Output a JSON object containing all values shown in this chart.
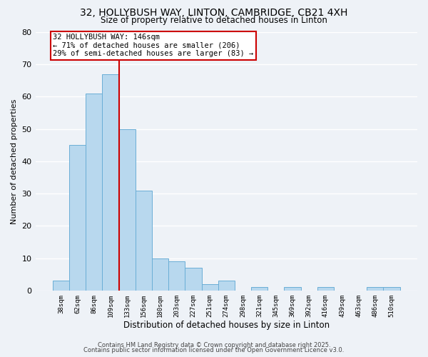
{
  "title_line1": "32, HOLLYBUSH WAY, LINTON, CAMBRIDGE, CB21 4XH",
  "title_line2": "Size of property relative to detached houses in Linton",
  "xlabel": "Distribution of detached houses by size in Linton",
  "ylabel": "Number of detached properties",
  "bin_labels": [
    "38sqm",
    "62sqm",
    "86sqm",
    "109sqm",
    "133sqm",
    "156sqm",
    "180sqm",
    "203sqm",
    "227sqm",
    "251sqm",
    "274sqm",
    "298sqm",
    "321sqm",
    "345sqm",
    "369sqm",
    "392sqm",
    "416sqm",
    "439sqm",
    "463sqm",
    "486sqm",
    "510sqm"
  ],
  "bar_heights": [
    3,
    45,
    61,
    67,
    50,
    31,
    10,
    9,
    7,
    2,
    3,
    0,
    1,
    0,
    1,
    0,
    1,
    0,
    0,
    1,
    1
  ],
  "bar_color": "#b8d8ee",
  "bar_edge_color": "#6aaed6",
  "vline_x": 3.5,
  "vline_color": "#cc0000",
  "annotation_line1": "32 HOLLYBUSH WAY: 146sqm",
  "annotation_line2": "← 71% of detached houses are smaller (206)",
  "annotation_line3": "29% of semi-detached houses are larger (83) →",
  "ylim": [
    0,
    80
  ],
  "yticks": [
    0,
    10,
    20,
    30,
    40,
    50,
    60,
    70,
    80
  ],
  "bg_color": "#eef2f7",
  "grid_color": "#ffffff",
  "footer_line1": "Contains HM Land Registry data © Crown copyright and database right 2025.",
  "footer_line2": "Contains public sector information licensed under the Open Government Licence v3.0."
}
